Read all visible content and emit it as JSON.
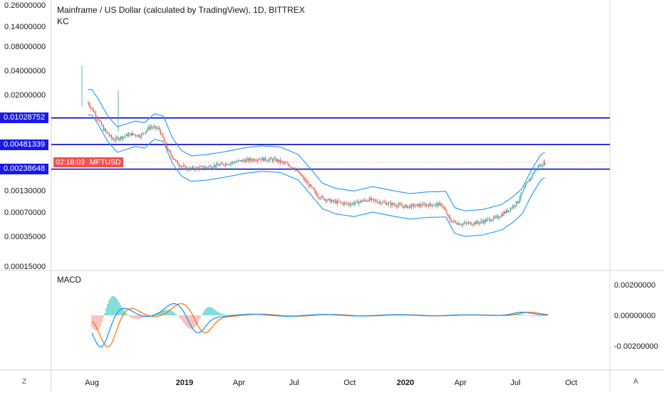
{
  "header": {
    "title": "Mainframe / US Dollar (calculated by TradingView), 1D, BITTREX",
    "indicator": "KC"
  },
  "price_axis": {
    "ticks": [
      "0.26000000",
      "0.14000000",
      "0.08000000",
      "0.04000000",
      "0.02000000",
      "0.00130000",
      "0.00070000",
      "0.00035000",
      "0.00015000"
    ],
    "tick_values": [
      0.26,
      0.14,
      0.08,
      0.04,
      0.02,
      0.0013,
      0.0007,
      0.00035,
      0.00015
    ]
  },
  "horizontal_lines": [
    {
      "label": "0.01028752",
      "value": 0.01028752
    },
    {
      "label": "0.00481339",
      "value": 0.00481339
    },
    {
      "label": "0.00238648",
      "value": 0.00238648
    }
  ],
  "price_tag": {
    "countdown": "02:18:03",
    "symbol": "MFTUSD",
    "value": 0.0029,
    "color": "#ef5350"
  },
  "macd": {
    "title": "MACD",
    "ticks": [
      "0.00200000",
      "0.00000000",
      "-0.00200000"
    ],
    "tick_values": [
      0.002,
      0,
      -0.002
    ]
  },
  "time_axis": {
    "labels": [
      "Aug",
      "2019",
      "Apr",
      "Jul",
      "Oct",
      "2020",
      "Apr",
      "Jul",
      "Oct"
    ],
    "bold": [
      false,
      true,
      false,
      false,
      false,
      true,
      false,
      false,
      false
    ]
  },
  "corners": {
    "left": "Z",
    "right": "A"
  },
  "colors": {
    "hline": "#0000cc",
    "band": "#2196f3",
    "up": "#26a69a",
    "down": "#ef5350",
    "macd": "#2196f3",
    "signal": "#ff6d00"
  },
  "chart_data": {
    "type": "line",
    "title": "Mainframe / US Dollar (calculated by TradingView), 1D, BITTREX",
    "y_scale": "log",
    "ylim": [
      0.0001,
      0.26
    ],
    "x": [
      "2018-07-25",
      "2018-08-05",
      "2018-08-20",
      "2018-09-05",
      "2018-09-20",
      "2018-10-05",
      "2018-10-20",
      "2018-11-05",
      "2018-11-20",
      "2018-12-05",
      "2018-12-20",
      "2019-01-05",
      "2019-02-01",
      "2019-03-01",
      "2019-04-01",
      "2019-05-01",
      "2019-06-01",
      "2019-07-01",
      "2019-07-20",
      "2019-08-10",
      "2019-09-01",
      "2019-10-01",
      "2019-11-01",
      "2019-12-01",
      "2020-01-01",
      "2020-02-01",
      "2020-03-01",
      "2020-03-15",
      "2020-04-01",
      "2020-05-01",
      "2020-06-01",
      "2020-06-20",
      "2020-07-05",
      "2020-07-20",
      "2020-08-05",
      "2020-08-20"
    ],
    "series": [
      {
        "values": [
          0.016,
          0.012,
          0.0075,
          0.0055,
          0.006,
          0.0065,
          0.0062,
          0.008,
          0.0075,
          0.004,
          0.0028,
          0.0024,
          0.0025,
          0.0027,
          0.003,
          0.0032,
          0.0031,
          0.0025,
          0.0017,
          0.0011,
          0.00095,
          0.00088,
          0.001,
          0.0009,
          0.00082,
          0.00086,
          0.00087,
          0.00055,
          0.0005,
          0.00052,
          0.0006,
          0.00075,
          0.00095,
          0.0016,
          0.0025,
          0.0029
        ]
      }
    ],
    "macd": {
      "x_range": [
        "2018-08-01",
        "2020-08-25"
      ]
    }
  }
}
